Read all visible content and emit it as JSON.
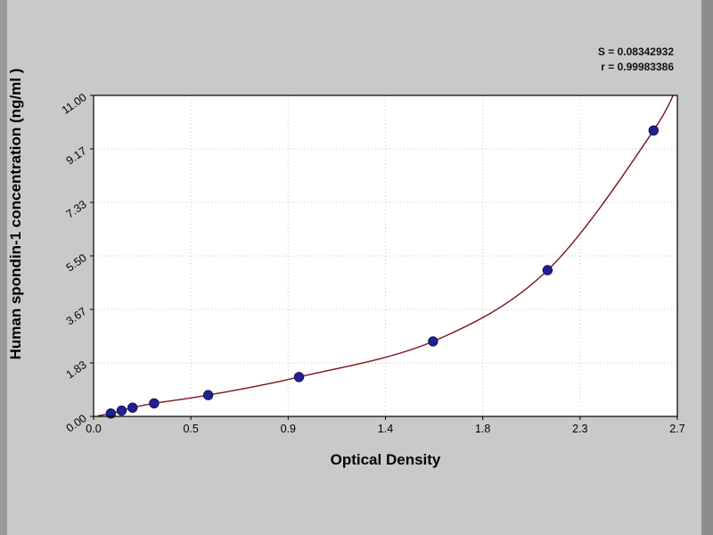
{
  "chart_data": {
    "type": "scatter",
    "title": "",
    "xlabel": "Optical Density",
    "ylabel": "Human spondin-1  concentration (ng/ml )",
    "xlim": [
      0,
      2.7
    ],
    "ylim": [
      0,
      11
    ],
    "x_ticks": {
      "values": [
        0,
        0.45,
        0.9,
        1.35,
        1.8,
        2.25,
        2.7
      ],
      "labels": [
        "0.0",
        "0.5",
        "0.9",
        "1.4",
        "1.8",
        "2.3",
        "2.7"
      ]
    },
    "y_ticks": {
      "values": [
        0,
        1.833,
        3.667,
        5.5,
        7.333,
        9.167,
        11
      ],
      "labels": [
        "0.00",
        "1.83",
        "3.67",
        "5.50",
        "7.33",
        "9.17",
        "11.00"
      ]
    },
    "points": [
      [
        0.08,
        0.1
      ],
      [
        0.13,
        0.2
      ],
      [
        0.18,
        0.3
      ],
      [
        0.28,
        0.45
      ],
      [
        0.53,
        0.73
      ],
      [
        0.95,
        1.35
      ],
      [
        1.57,
        2.57
      ],
      [
        2.1,
        5.01
      ],
      [
        2.59,
        9.8
      ]
    ],
    "fit_curve_extension": [
      [
        0.02,
        0.02
      ],
      [
        2.72,
        11.8
      ]
    ],
    "annotations": [
      "S = 0.08342932",
      "r = 0.99983386"
    ],
    "grid": true,
    "legend": "none",
    "colors": {
      "point": "#22218f",
      "point_edge": "#101060",
      "curve": "#7b1418",
      "grid": "#c4c4c4",
      "plot_bg": "#ffffff",
      "frame": "#000000",
      "page_bg": "#c9c9c9",
      "text": "#000000"
    }
  }
}
